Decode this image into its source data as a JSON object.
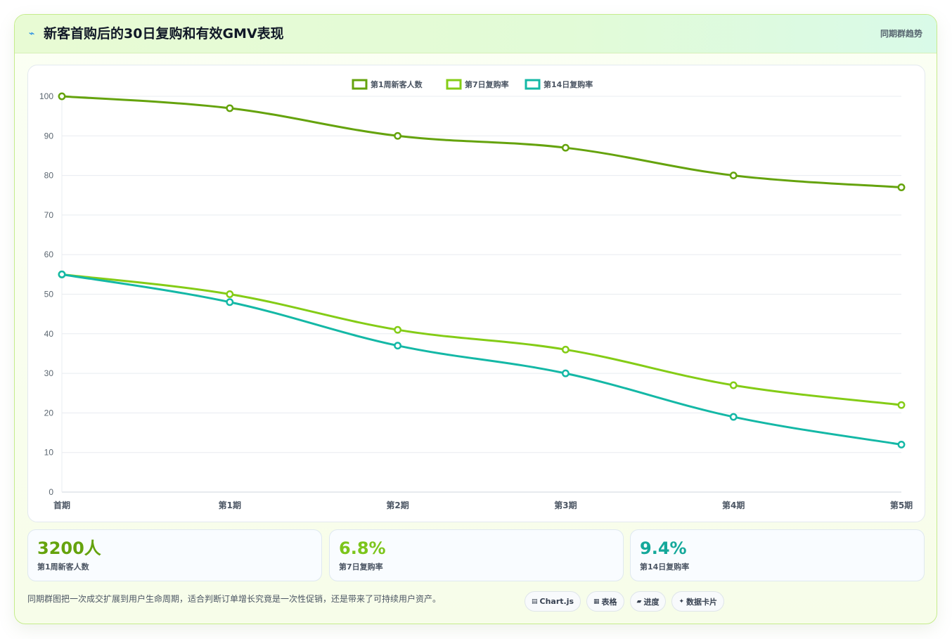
{
  "header": {
    "title_icon": "⌁",
    "title": "新客首购后的30日复购和有效GMV表现",
    "subtitle": "同期群趋势"
  },
  "chart_data": {
    "type": "line",
    "categories": [
      "首期",
      "第1期",
      "第2期",
      "第3期",
      "第4期",
      "第5期"
    ],
    "series": [
      {
        "name": "第1周新客人数",
        "color": "#65a30d",
        "values": [
          100,
          97,
          90,
          87,
          80,
          77
        ]
      },
      {
        "name": "第7日复购率",
        "color": "#84cc16",
        "values": [
          55,
          50,
          41,
          36,
          27,
          22
        ]
      },
      {
        "name": "第14日复购率",
        "color": "#14b8a6",
        "values": [
          55,
          48,
          37,
          30,
          19,
          12
        ]
      }
    ],
    "ylim": [
      0,
      100
    ],
    "yticks": [
      0,
      10,
      20,
      30,
      40,
      50,
      60,
      70,
      80,
      90,
      100
    ],
    "grid": true,
    "legend": "top-center"
  },
  "kpis": [
    {
      "value": "3200人",
      "label": "第1周新客人数",
      "color": "#65a30d"
    },
    {
      "value": "6.8%",
      "label": "第7日复购率",
      "color": "#7cc51b"
    },
    {
      "value": "9.4%",
      "label": "第14日复购率",
      "color": "#14a89a"
    }
  ],
  "footer": {
    "description": "同期群图把一次成交扩展到用户生命周期，适合判断订单增长究竟是一次性促销，还是带来了可持续用户资产。",
    "tags": [
      {
        "icon": "▤",
        "label": "Chart.js"
      },
      {
        "icon": "▦",
        "label": "表格"
      },
      {
        "icon": "▰",
        "label": "进度"
      },
      {
        "icon": "✦",
        "label": "数据卡片"
      }
    ]
  }
}
